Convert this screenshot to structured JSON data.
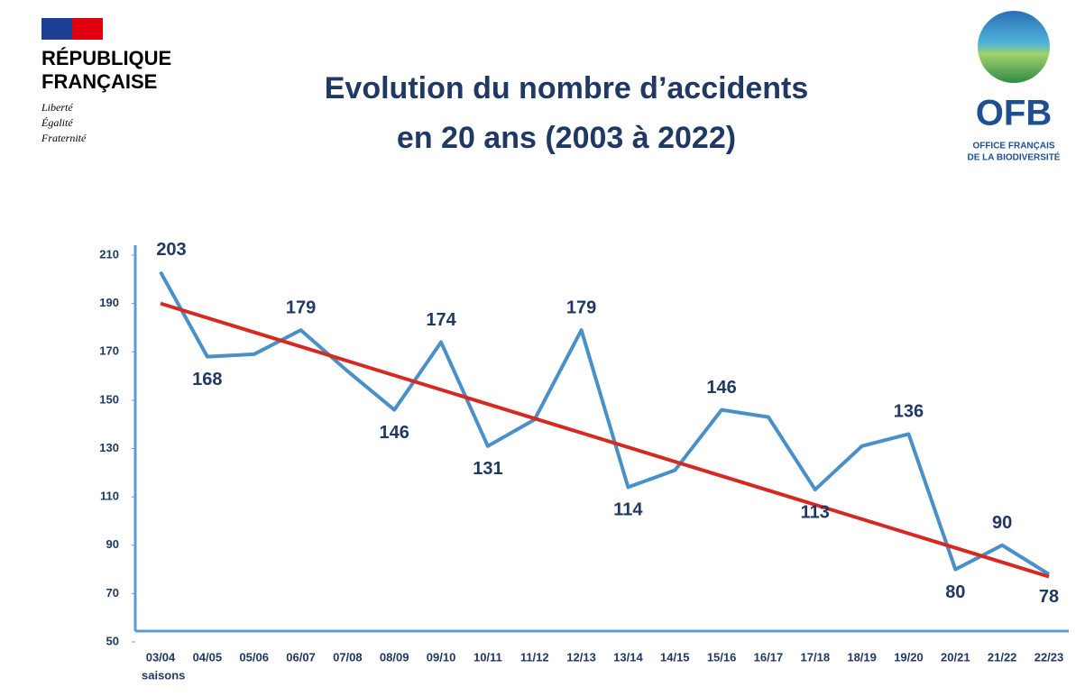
{
  "header": {
    "republic": [
      "RÉPUBLIQUE",
      "FRANÇAISE"
    ],
    "motto": [
      "Liberté",
      "Égalité",
      "Fraternité"
    ],
    "ofb": {
      "acronym": "OFB",
      "name": [
        "OFFICE FRANÇAIS",
        "DE LA BIODIVERSITÉ"
      ]
    }
  },
  "chart_data": {
    "type": "line",
    "title": [
      "Evolution du nombre d’accidents",
      "en 20 ans (2003 à 2022)"
    ],
    "x_label": "saisons",
    "categories": [
      "03/04",
      "04/05",
      "05/06",
      "06/07",
      "07/08",
      "08/09",
      "09/10",
      "10/11",
      "11/12",
      "12/13",
      "13/14",
      "14/15",
      "15/16",
      "16/17",
      "17/18",
      "18/19",
      "19/20",
      "20/21",
      "21/22",
      "22/23"
    ],
    "series": [
      {
        "name": "accidents",
        "color": "#4a90c8",
        "values": [
          203,
          168,
          169,
          179,
          162,
          146,
          174,
          131,
          142,
          179,
          114,
          121,
          146,
          143,
          113,
          131,
          136,
          80,
          90,
          78
        ],
        "value_labels": [
          "203",
          "168",
          null,
          "179",
          null,
          "146",
          "174",
          "131",
          null,
          "179",
          "114",
          null,
          "146",
          null,
          "113",
          null,
          "136",
          "80",
          "90",
          "78"
        ]
      }
    ],
    "trendline": {
      "color": "#d42a22",
      "values": [
        190,
        77
      ]
    },
    "ylim": [
      50,
      210
    ],
    "yticks": [
      50,
      70,
      90,
      110,
      130,
      150,
      170,
      190,
      210
    ]
  }
}
